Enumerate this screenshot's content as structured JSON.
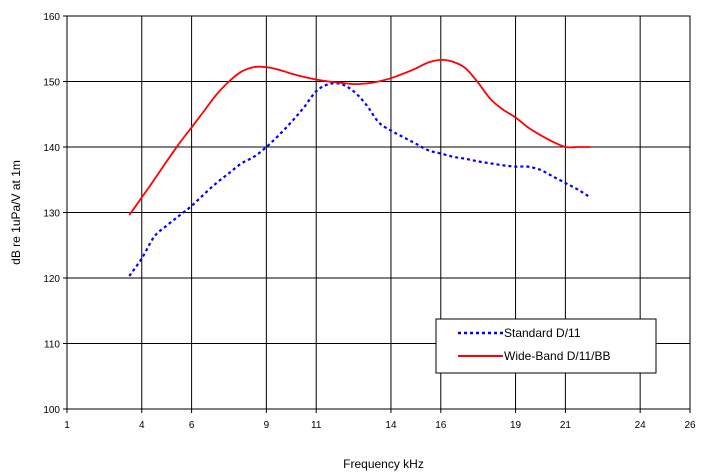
{
  "chart_data": {
    "type": "line",
    "xlabel": "Frequency kHz",
    "ylabel": "dB re 1uPa/V at 1m",
    "xlim": [
      1,
      26
    ],
    "ylim": [
      100,
      160
    ],
    "x_ticks": [
      1,
      4,
      6,
      9,
      11,
      14,
      16,
      19,
      21,
      24,
      26
    ],
    "y_ticks": [
      100,
      110,
      120,
      130,
      140,
      150,
      160
    ],
    "grid": true,
    "legend_position": "bottom-right",
    "series": [
      {
        "name": "Standard D/11",
        "color": "#0000ff",
        "style": "dashed",
        "x": [
          3.5,
          4.0,
          4.5,
          5.0,
          5.5,
          6.0,
          6.5,
          7.0,
          7.5,
          8.0,
          8.5,
          9.0,
          9.5,
          10.0,
          10.5,
          11.0,
          11.5,
          12.0,
          12.5,
          13.0,
          13.5,
          14.0,
          14.5,
          15.0,
          15.5,
          16.0,
          16.5,
          17.0,
          17.5,
          18.0,
          18.5,
          19.0,
          19.5,
          20.0,
          20.5,
          21.0,
          21.5,
          22.0
        ],
        "y": [
          120.3,
          123.0,
          126.3,
          128.0,
          129.5,
          131.0,
          132.8,
          134.5,
          136.0,
          137.5,
          138.5,
          140.0,
          141.8,
          143.8,
          146.0,
          148.5,
          149.6,
          149.6,
          148.5,
          146.5,
          143.8,
          142.5,
          141.5,
          140.5,
          139.5,
          139.0,
          138.5,
          138.2,
          137.8,
          137.5,
          137.2,
          137.0,
          137.0,
          136.5,
          135.5,
          134.5,
          133.5,
          132.3
        ]
      },
      {
        "name": "Wide-Band D/11/BB",
        "color": "#ff0000",
        "style": "solid",
        "x": [
          3.5,
          4.0,
          4.5,
          5.0,
          5.5,
          6.0,
          6.5,
          7.0,
          7.5,
          8.0,
          8.5,
          9.0,
          9.5,
          10.0,
          10.5,
          11.0,
          11.5,
          12.0,
          12.5,
          13.0,
          13.5,
          14.0,
          14.5,
          15.0,
          15.5,
          16.0,
          16.5,
          17.0,
          17.5,
          18.0,
          18.5,
          19.0,
          19.5,
          20.0,
          20.5,
          21.0,
          21.5,
          22.0
        ],
        "y": [
          129.6,
          132.3,
          135.0,
          137.8,
          140.5,
          143.0,
          145.5,
          148.0,
          150.0,
          151.5,
          152.2,
          152.2,
          151.8,
          151.2,
          150.7,
          150.3,
          150.0,
          149.8,
          149.6,
          149.7,
          150.0,
          150.5,
          151.2,
          152.0,
          152.9,
          153.3,
          153.0,
          152.0,
          149.8,
          147.3,
          145.7,
          144.5,
          143.0,
          141.8,
          140.8,
          140.0,
          140.0,
          140.0
        ]
      }
    ]
  }
}
